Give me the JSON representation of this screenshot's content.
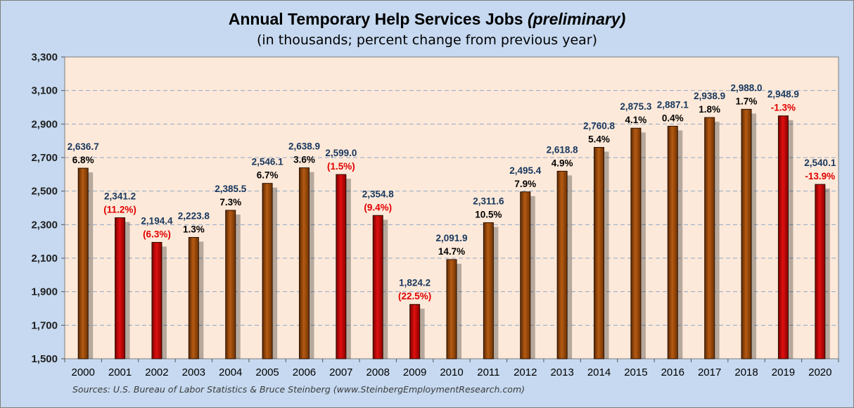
{
  "title_main": "Annual Temporary Help Services Jobs",
  "title_emph": "(preliminary)",
  "subtitle": "(in thousands; percent change from previous year)",
  "source": "Sources: U.S. Bureau of Labor Statistics & Bruce Steinberg (www.SteinbergEmploymentResearch.com)",
  "colors": {
    "growth_bar": "#984807",
    "decline_bar": "#c00000",
    "decline_text": "#e00000",
    "plot_background": "#fde9d9",
    "page_background": "#c6d9f0",
    "value_label": "#17375e"
  },
  "chart_data": {
    "type": "bar",
    "categories": [
      "2000",
      "2001",
      "2002",
      "2003",
      "2004",
      "2005",
      "2006",
      "2007",
      "2008",
      "2009",
      "2010",
      "2011",
      "2012",
      "2013",
      "2014",
      "2015",
      "2016",
      "2017",
      "2018",
      "2019",
      "2020"
    ],
    "values": [
      2636.7,
      2341.2,
      2194.4,
      2223.8,
      2385.5,
      2546.1,
      2638.9,
      2599.0,
      2354.8,
      1824.2,
      2091.9,
      2311.6,
      2495.4,
      2618.8,
      2760.8,
      2875.3,
      2887.1,
      2938.9,
      2988.0,
      2948.9,
      2540.1
    ],
    "value_labels": [
      "2,636.7",
      "2,341.2",
      "2,194.4",
      "2,223.8",
      "2,385.5",
      "2,546.1",
      "2,638.9",
      "2,599.0",
      "2,354.8",
      "1,824.2",
      "2,091.9",
      "2,311.6",
      "2,495.4",
      "2,618.8",
      "2,760.8",
      "2,875.3",
      "2,887.1",
      "2,938.9",
      "2,988.0",
      "2,948.9",
      "2,540.1"
    ],
    "pct_labels": [
      "6.8%",
      "(11.2%)",
      "(6.3%)",
      "1.3%",
      "7.3%",
      "6.7%",
      "3.6%",
      "(1.5%)",
      "(9.4%)",
      "(22.5%)",
      "14.7%",
      "10.5%",
      "7.9%",
      "4.9%",
      "5.4%",
      "4.1%",
      "0.4%",
      "1.8%",
      "1.7%",
      "-1.3%",
      "-13.9%"
    ],
    "decline": [
      false,
      true,
      true,
      false,
      false,
      false,
      false,
      true,
      true,
      true,
      false,
      false,
      false,
      false,
      false,
      false,
      false,
      false,
      false,
      true,
      true
    ],
    "ylim": [
      1500,
      3300
    ],
    "yticks": [
      1500,
      1700,
      1900,
      2100,
      2300,
      2500,
      2700,
      2900,
      3100,
      3300
    ],
    "ytick_labels": [
      "1,500",
      "1,700",
      "1,900",
      "2,100",
      "2,300",
      "2,500",
      "2,700",
      "2,900",
      "3,100",
      "3,300"
    ],
    "grid": true,
    "xlabel": "",
    "ylabel": ""
  }
}
